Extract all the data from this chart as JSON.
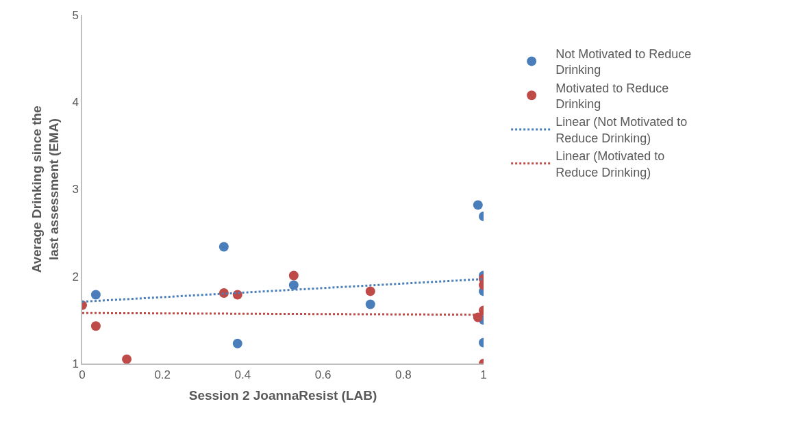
{
  "chart_data": {
    "type": "scatter",
    "xlabel": "Session 2 JoannaResist (LAB)",
    "ylabel": "Average Drinking since the last assessment (EMA)",
    "xlim": [
      0,
      1
    ],
    "xticks": [
      0,
      0.2,
      0.4,
      0.6,
      0.8,
      1
    ],
    "ylim": [
      1,
      5
    ],
    "yticks": [
      1,
      2,
      3,
      4,
      5
    ],
    "legend": "right",
    "marker": "circle",
    "series": [
      {
        "name": "Not Motivated to Reduce Drinking",
        "color": "#4a7ebb",
        "x": [
          0.034,
          0.353,
          0.387,
          0.527,
          0.718,
          0.986,
          1,
          1,
          1,
          1,
          1
        ],
        "values": [
          1.79,
          2.34,
          1.23,
          1.9,
          1.68,
          2.82,
          2.69,
          2.01,
          1.83,
          1.5,
          1.24
        ]
      },
      {
        "name": "Motivated to Reduce Drinking",
        "color": "#be4b48",
        "x": [
          0,
          0.034,
          0.111,
          0.353,
          0.387,
          0.527,
          0.718,
          0.986,
          1,
          1,
          1,
          1
        ],
        "values": [
          1.67,
          1.43,
          1.05,
          1.81,
          1.79,
          2.01,
          1.83,
          1.53,
          1.97,
          1.9,
          1.61,
          1.0
        ]
      },
      {
        "name": "Linear (Not Motivated to Reduce Drinking)",
        "type": "line",
        "line_style": "dotted",
        "marker": "none",
        "color": "#4a7ebb",
        "x": [
          0,
          1
        ],
        "values": [
          1.71,
          1.97
        ]
      },
      {
        "name": "Linear (Motivated to Reduce Drinking)",
        "type": "line",
        "line_style": "dotted",
        "marker": "none",
        "color": "#be4b48",
        "x": [
          0,
          1
        ],
        "values": [
          1.58,
          1.56
        ]
      }
    ]
  }
}
